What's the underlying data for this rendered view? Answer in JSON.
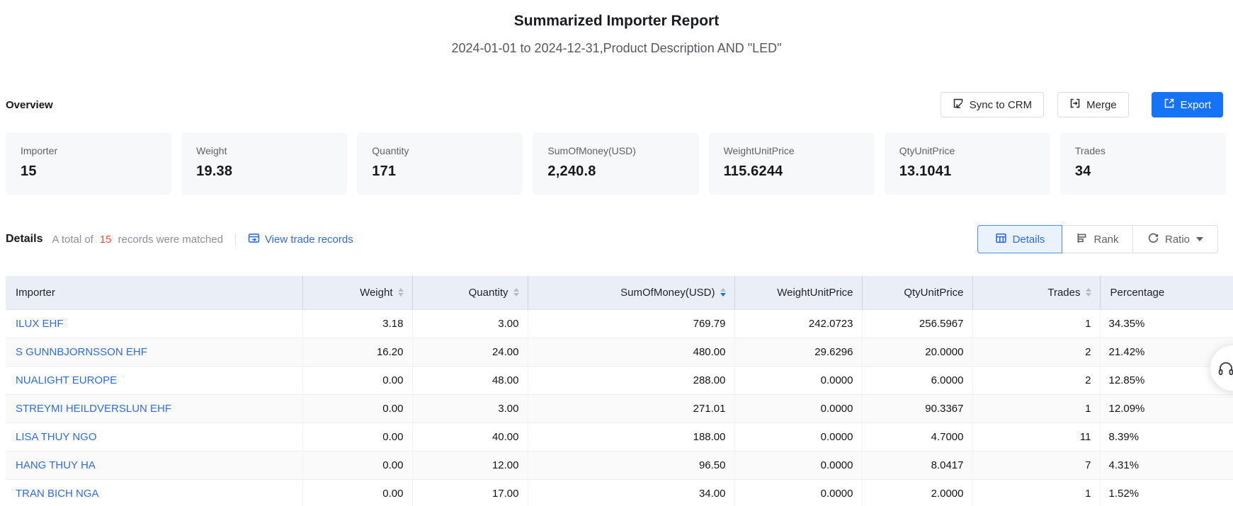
{
  "page": {
    "title": "Summarized Importer Report",
    "subtitle": "2024-01-01 to 2024-12-31,Product Description AND \"LED\""
  },
  "overview": {
    "heading": "Overview",
    "actions": [
      {
        "label": "Sync to CRM",
        "icon": "sync-crm-icon",
        "style": "default"
      },
      {
        "label": "Merge",
        "icon": "merge-icon",
        "style": "default"
      },
      {
        "label": "Export",
        "icon": "export-icon",
        "style": "primary"
      }
    ],
    "cards": [
      {
        "label": "Importer",
        "value": "15"
      },
      {
        "label": "Weight",
        "value": "19.38"
      },
      {
        "label": "Quantity",
        "value": "171"
      },
      {
        "label": "SumOfMoney(USD)",
        "value": "2,240.8"
      },
      {
        "label": "WeightUnitPrice",
        "value": "115.6244"
      },
      {
        "label": "QtyUnitPrice",
        "value": "13.1041"
      },
      {
        "label": "Trades",
        "value": "34"
      }
    ]
  },
  "details": {
    "heading": "Details",
    "match_prefix": "A total of",
    "match_count": "15",
    "match_suffix": "records were matched",
    "view_link": "View trade records",
    "view_modes": [
      {
        "label": "Details",
        "icon": "table-grid-icon",
        "active": true
      },
      {
        "label": "Rank",
        "icon": "rank-icon",
        "active": false
      },
      {
        "label": "Ratio",
        "icon": "ratio-refresh-icon",
        "active": false,
        "has_caret": true
      }
    ]
  },
  "table": {
    "columns": [
      {
        "label": "Importer",
        "align": "left",
        "sortable": false,
        "sort": null
      },
      {
        "label": "Weight",
        "align": "right",
        "sortable": true,
        "sort": null
      },
      {
        "label": "Quantity",
        "align": "right",
        "sortable": true,
        "sort": null
      },
      {
        "label": "SumOfMoney(USD)",
        "align": "right",
        "sortable": true,
        "sort": "desc"
      },
      {
        "label": "WeightUnitPrice",
        "align": "right",
        "sortable": false,
        "sort": null
      },
      {
        "label": "QtyUnitPrice",
        "align": "right",
        "sortable": false,
        "sort": null
      },
      {
        "label": "Trades",
        "align": "right",
        "sortable": true,
        "sort": null
      },
      {
        "label": "Percentage",
        "align": "left",
        "sortable": false,
        "sort": null
      }
    ],
    "rows": [
      [
        "ILUX EHF",
        "3.18",
        "3.00",
        "769.79",
        "242.0723",
        "256.5967",
        "1",
        "34.35%"
      ],
      [
        "S GUNNBJORNSSON EHF",
        "16.20",
        "24.00",
        "480.00",
        "29.6296",
        "20.0000",
        "2",
        "21.42%"
      ],
      [
        "NUALIGHT EUROPE",
        "0.00",
        "48.00",
        "288.00",
        "0.0000",
        "6.0000",
        "2",
        "12.85%"
      ],
      [
        "STREYMI HEILDVERSLUN EHF",
        "0.00",
        "3.00",
        "271.01",
        "0.0000",
        "90.3367",
        "1",
        "12.09%"
      ],
      [
        "LISA THUY NGO",
        "0.00",
        "40.00",
        "188.00",
        "0.0000",
        "4.7000",
        "11",
        "8.39%"
      ],
      [
        "HANG THUY HA",
        "0.00",
        "12.00",
        "96.50",
        "0.0000",
        "8.0417",
        "7",
        "4.31%"
      ],
      [
        "TRAN BICH NGA",
        "0.00",
        "17.00",
        "34.00",
        "0.0000",
        "2.0000",
        "1",
        "1.52%"
      ]
    ]
  },
  "colors": {
    "primary_blue": "#1473f6",
    "link_blue": "#2e6ce0",
    "count_red": "#f5483b",
    "table_header_bg": "#e9eef7",
    "card_bg": "#f7f8fa",
    "active_tab_bg": "#eaf2fe"
  },
  "floating_button": {
    "icon": "headset-icon"
  }
}
